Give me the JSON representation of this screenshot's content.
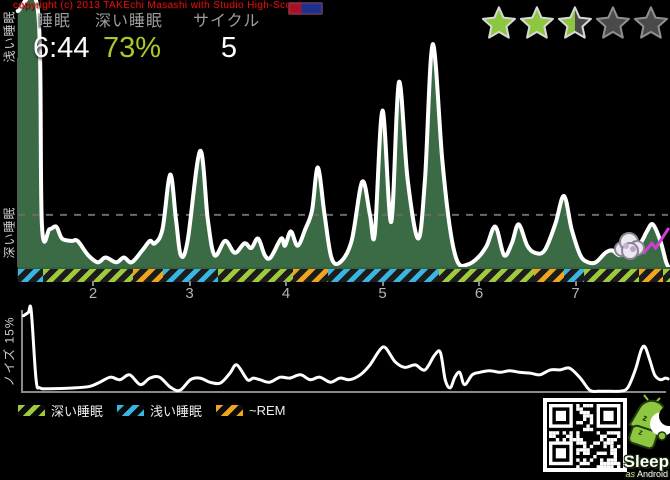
{
  "copyright": "copyright (c) 2013 TAKEchi Masashi with Studio High-Score",
  "header": {
    "stats": [
      {
        "label": "睡眠",
        "value": "6:44"
      },
      {
        "label": "深い睡眠",
        "value": "73%"
      },
      {
        "label": "サイクル",
        "value": "5"
      }
    ],
    "rating": {
      "value": 2.5,
      "max": 5
    }
  },
  "axis_labels": {
    "hypnogram_top": "浅い睡眠",
    "hypnogram_bottom": "深い睡眠",
    "noise": "ノイズ 15%"
  },
  "legend": [
    {
      "label": "深い睡眠",
      "phase": "deep"
    },
    {
      "label": "浅い睡眠",
      "phase": "light"
    },
    {
      "label": "~REM",
      "phase": "rem"
    }
  ],
  "logo": {
    "title": "Sleep",
    "subtitle_as": "as",
    "subtitle_rest": " Android"
  },
  "colors": {
    "deep": "#9dcb3b",
    "light": "#39b5e2",
    "rem": "#f0a51f",
    "deep_value": "#a9c929",
    "star_filled": "#8dc63f",
    "star_empty": "#4a4a4a",
    "star_outline_filled": "#d8d8d8",
    "star_outline_empty": "#8f8f8f",
    "chart_fill": "#3b6b45",
    "chart_line": "#ffffff",
    "gridline": "#6a6a6a",
    "wake_marker": "#cf3fd8",
    "copyright_red": "#dd1111"
  },
  "chart_data": [
    {
      "type": "area",
      "title": "sleep depth hypnogram",
      "x_unit": "hour of night",
      "x_ticks": [
        "2",
        "3",
        "4",
        "5",
        "6",
        "7"
      ],
      "x_tick_hours": [
        2,
        3,
        4,
        5,
        6,
        7
      ],
      "x_range": [
        1.22,
        7.98
      ],
      "y_range": [
        0,
        1
      ],
      "y_meaning": "0 = deep sleep (深い睡眠), 1 = light sleep (浅い睡眠)",
      "gridline_y": 0.22,
      "points": [
        [
          1.22,
          1.08
        ],
        [
          1.43,
          1.08
        ],
        [
          1.47,
          0.18
        ],
        [
          1.55,
          0.16
        ],
        [
          1.62,
          0.17
        ],
        [
          1.68,
          0.12
        ],
        [
          1.78,
          0.11
        ],
        [
          1.84,
          0.11
        ],
        [
          1.95,
          0.05
        ],
        [
          2.05,
          0.02
        ],
        [
          2.13,
          0.04
        ],
        [
          2.24,
          0.02
        ],
        [
          2.32,
          0.04
        ],
        [
          2.4,
          0.02
        ],
        [
          2.51,
          0.07
        ],
        [
          2.59,
          0.11
        ],
        [
          2.64,
          0.1
        ],
        [
          2.72,
          0.16
        ],
        [
          2.8,
          0.39
        ],
        [
          2.86,
          0.2
        ],
        [
          2.91,
          0.05
        ],
        [
          2.98,
          0.11
        ],
        [
          3.11,
          0.49
        ],
        [
          3.19,
          0.2
        ],
        [
          3.26,
          0.05
        ],
        [
          3.37,
          0.11
        ],
        [
          3.47,
          0.06
        ],
        [
          3.57,
          0.1
        ],
        [
          3.64,
          0.08
        ],
        [
          3.71,
          0.12
        ],
        [
          3.78,
          0.05
        ],
        [
          3.84,
          0.04
        ],
        [
          3.95,
          0.12
        ],
        [
          3.99,
          0.09
        ],
        [
          4.05,
          0.15
        ],
        [
          4.12,
          0.09
        ],
        [
          4.2,
          0.16
        ],
        [
          4.27,
          0.24
        ],
        [
          4.33,
          0.42
        ],
        [
          4.4,
          0.22
        ],
        [
          4.47,
          0.04
        ],
        [
          4.56,
          0.02
        ],
        [
          4.68,
          0.11
        ],
        [
          4.79,
          0.36
        ],
        [
          4.87,
          0.22
        ],
        [
          4.92,
          0.14
        ],
        [
          5.0,
          0.66
        ],
        [
          5.09,
          0.19
        ],
        [
          5.17,
          0.78
        ],
        [
          5.26,
          0.37
        ],
        [
          5.37,
          0.12
        ],
        [
          5.44,
          0.37
        ],
        [
          5.52,
          0.94
        ],
        [
          5.62,
          0.45
        ],
        [
          5.7,
          0.16
        ],
        [
          5.78,
          0.02
        ],
        [
          5.88,
          0.01
        ],
        [
          5.99,
          0.04
        ],
        [
          6.08,
          0.09
        ],
        [
          6.17,
          0.17
        ],
        [
          6.26,
          0.05
        ],
        [
          6.34,
          0.1
        ],
        [
          6.41,
          0.18
        ],
        [
          6.5,
          0.09
        ],
        [
          6.58,
          0.06
        ],
        [
          6.68,
          0.07
        ],
        [
          6.79,
          0.18
        ],
        [
          6.88,
          0.3
        ],
        [
          6.96,
          0.16
        ],
        [
          7.05,
          0.05
        ],
        [
          7.13,
          0.02
        ],
        [
          7.21,
          0.02
        ],
        [
          7.31,
          0.06
        ],
        [
          7.38,
          0.07
        ],
        [
          7.46,
          0.05
        ],
        [
          7.56,
          0.08
        ],
        [
          7.67,
          0.1
        ],
        [
          7.74,
          0.15
        ],
        [
          7.8,
          0.18
        ],
        [
          7.88,
          0.11
        ],
        [
          7.94,
          0.02
        ],
        [
          7.98,
          -0.01
        ]
      ],
      "phases": [
        {
          "phase": "light",
          "from": 1.22,
          "to": 1.48
        },
        {
          "phase": "deep",
          "from": 1.48,
          "to": 2.41
        },
        {
          "phase": "rem",
          "from": 2.41,
          "to": 2.73
        },
        {
          "phase": "light",
          "from": 2.73,
          "to": 3.3
        },
        {
          "phase": "deep",
          "from": 3.3,
          "to": 4.07
        },
        {
          "phase": "rem",
          "from": 4.07,
          "to": 4.44
        },
        {
          "phase": "light",
          "from": 4.44,
          "to": 5.59
        },
        {
          "phase": "deep",
          "from": 5.59,
          "to": 6.57
        },
        {
          "phase": "rem",
          "from": 6.57,
          "to": 6.88
        },
        {
          "phase": "light",
          "from": 6.88,
          "to": 7.09
        },
        {
          "phase": "deep",
          "from": 7.09,
          "to": 7.66
        },
        {
          "phase": "rem",
          "from": 7.66,
          "to": 7.91
        },
        {
          "phase": "deep",
          "from": 7.91,
          "to": 7.98
        }
      ],
      "wake_marker_points": [
        [
          7.71,
          0.06
        ],
        [
          7.79,
          0.1
        ],
        [
          7.83,
          0.08
        ],
        [
          7.96,
          0.16
        ]
      ]
    },
    {
      "type": "line",
      "title": "noise",
      "ylabel": "ノイズ 15%",
      "x_unit": "hour of night",
      "x_range": [
        1.28,
        7.96
      ],
      "y_range": [
        0,
        1
      ],
      "points": [
        [
          1.28,
          0.93
        ],
        [
          1.33,
          0.97
        ],
        [
          1.36,
          0.99
        ],
        [
          1.41,
          0.15
        ],
        [
          1.45,
          0.05
        ],
        [
          1.55,
          0.04
        ],
        [
          1.81,
          0.05
        ],
        [
          1.97,
          0.07
        ],
        [
          2.07,
          0.12
        ],
        [
          2.18,
          0.18
        ],
        [
          2.28,
          0.15
        ],
        [
          2.38,
          0.21
        ],
        [
          2.49,
          0.09
        ],
        [
          2.59,
          0.17
        ],
        [
          2.69,
          0.18
        ],
        [
          2.8,
          0.06
        ],
        [
          2.9,
          0.02
        ],
        [
          3.01,
          0.15
        ],
        [
          3.11,
          0.17
        ],
        [
          3.21,
          0.12
        ],
        [
          3.32,
          0.11
        ],
        [
          3.42,
          0.23
        ],
        [
          3.49,
          0.33
        ],
        [
          3.6,
          0.15
        ],
        [
          3.66,
          0.17
        ],
        [
          3.73,
          0.15
        ],
        [
          3.83,
          0.12
        ],
        [
          3.94,
          0.18
        ],
        [
          4.04,
          0.17
        ],
        [
          4.15,
          0.21
        ],
        [
          4.25,
          0.15
        ],
        [
          4.35,
          0.18
        ],
        [
          4.46,
          0.12
        ],
        [
          4.56,
          0.17
        ],
        [
          4.66,
          0.15
        ],
        [
          4.77,
          0.21
        ],
        [
          4.87,
          0.33
        ],
        [
          4.97,
          0.51
        ],
        [
          5.03,
          0.54
        ],
        [
          5.13,
          0.37
        ],
        [
          5.23,
          0.3
        ],
        [
          5.34,
          0.33
        ],
        [
          5.44,
          0.27
        ],
        [
          5.54,
          0.45
        ],
        [
          5.6,
          0.48
        ],
        [
          5.65,
          0.15
        ],
        [
          5.7,
          0.05
        ],
        [
          5.75,
          0.18
        ],
        [
          5.8,
          0.24
        ],
        [
          5.85,
          0.09
        ],
        [
          5.93,
          0.21
        ],
        [
          6.01,
          0.24
        ],
        [
          6.11,
          0.26
        ],
        [
          6.22,
          0.24
        ],
        [
          6.32,
          0.26
        ],
        [
          6.42,
          0.24
        ],
        [
          6.53,
          0.23
        ],
        [
          6.63,
          0.21
        ],
        [
          6.74,
          0.27
        ],
        [
          6.84,
          0.27
        ],
        [
          6.94,
          0.29
        ],
        [
          7.05,
          0.17
        ],
        [
          7.15,
          0.02
        ],
        [
          7.25,
          0.01
        ],
        [
          7.36,
          0.01
        ],
        [
          7.46,
          0.01
        ],
        [
          7.54,
          0.05
        ],
        [
          7.62,
          0.27
        ],
        [
          7.68,
          0.51
        ],
        [
          7.72,
          0.55
        ],
        [
          7.77,
          0.39
        ],
        [
          7.82,
          0.21
        ],
        [
          7.88,
          0.15
        ],
        [
          7.93,
          0.17
        ],
        [
          7.96,
          0.16
        ]
      ]
    }
  ]
}
